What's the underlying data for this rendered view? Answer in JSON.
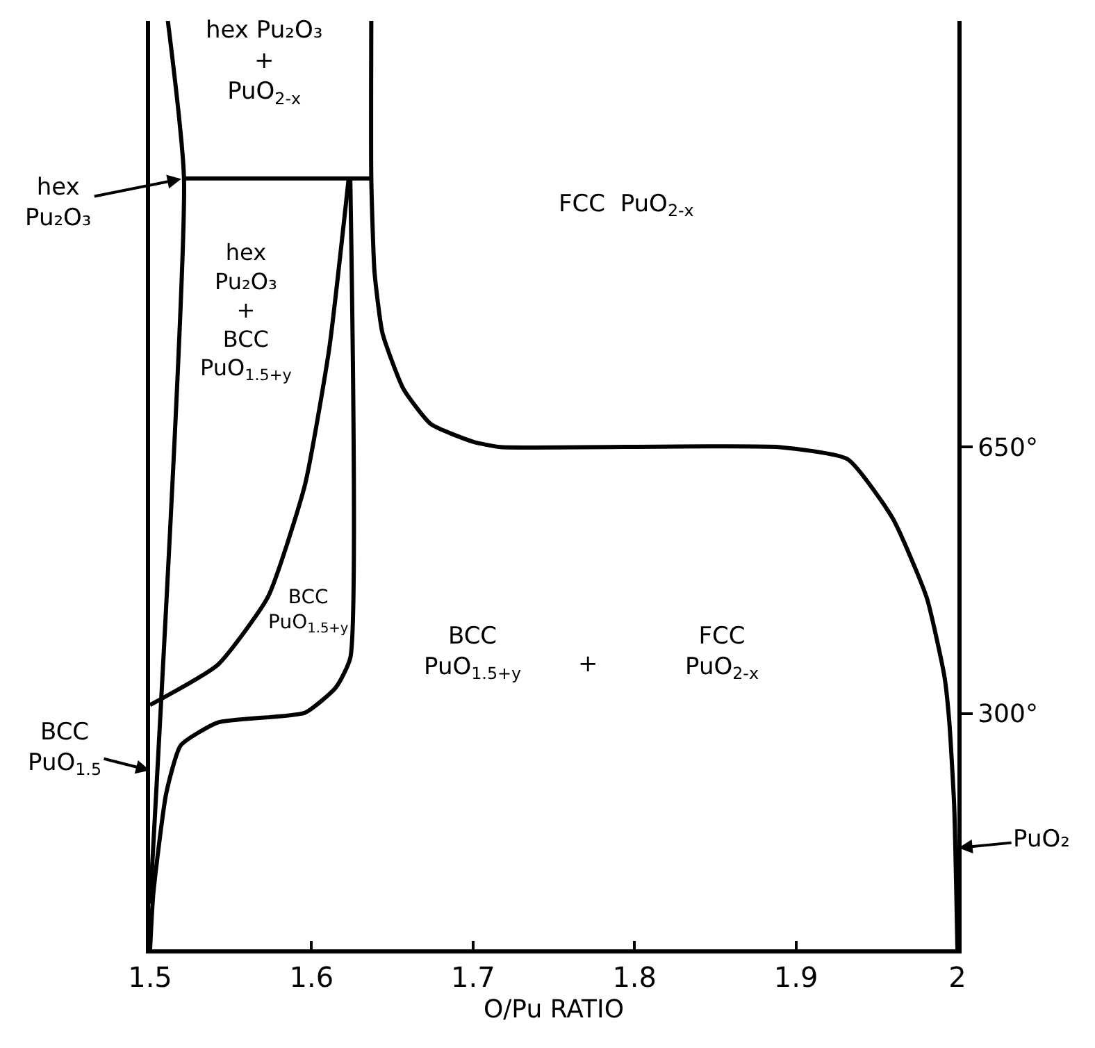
{
  "chart_data": {
    "type": "line",
    "xlabel": "O/Pu RATIO",
    "xlim": [
      1.5,
      2.0
    ],
    "xticks": [
      1.5,
      1.6,
      1.7,
      1.8,
      1.9,
      2.0
    ],
    "ylim": [
      -10,
      1210
    ],
    "yticks": [
      {
        "value": 650,
        "label": "650°"
      },
      {
        "value": 300,
        "label": "300°"
      }
    ],
    "tick_labels": "xy",
    "marker": "none",
    "line_style": "solid",
    "series": [
      {
        "color": "#000000",
        "x": [
          1.511,
          1.521,
          1.5
        ],
        "values": [
          1210,
          1003,
          50
        ]
      },
      {
        "color": "#000000",
        "x": [
          1.521,
          1.638
        ],
        "values": [
          1003,
          1003
        ]
      },
      {
        "color": "#000000",
        "x": [
          1.5,
          1.542,
          1.573,
          1.596,
          1.611,
          1.623
        ],
        "values": [
          311,
          364,
          453,
          601,
          780,
          1003
        ]
      },
      {
        "color": "#000000",
        "x": [
          1.624,
          1.624,
          1.615,
          1.596,
          1.542,
          1.519,
          1.51,
          1.502,
          1.5
        ],
        "values": [
          1003,
          373,
          334,
          301,
          288,
          258,
          195,
          63,
          -10
        ]
      },
      {
        "color": "#000000",
        "x": [
          1.637,
          1.637,
          1.639,
          1.644,
          1.657,
          1.674,
          1.7,
          1.717,
          1.889,
          1.932,
          1.96,
          1.981,
          1.992,
          1.995,
          1.998,
          2.0
        ],
        "values": [
          1210,
          1003,
          880,
          799,
          726,
          680,
          657,
          650,
          650,
          634,
          556,
          452,
          348,
          288,
          178,
          -10
        ]
      }
    ],
    "annotations": [
      "hex Pu₂O₃\n+\nPuO$_{2-x}$",
      {
        "text": "hex\nPu₂O₃",
        "x": 1.521,
        "y": 1003
      },
      "FCC  PuO$_{2-x}$",
      "hex\nPu₂O₃\n+\nBCC\nPuO$_{1.5+y}$",
      "BCC\nPuO$_{1.5+y}$",
      "BCC\nPuO$_{1.5+y}$",
      "+",
      "FCC\nPuO$_{2-x}$",
      "BCC\nPuO$_{1.5}$",
      {
        "text": "PuO₂",
        "x": 1.999,
        "y": 123
      }
    ]
  }
}
